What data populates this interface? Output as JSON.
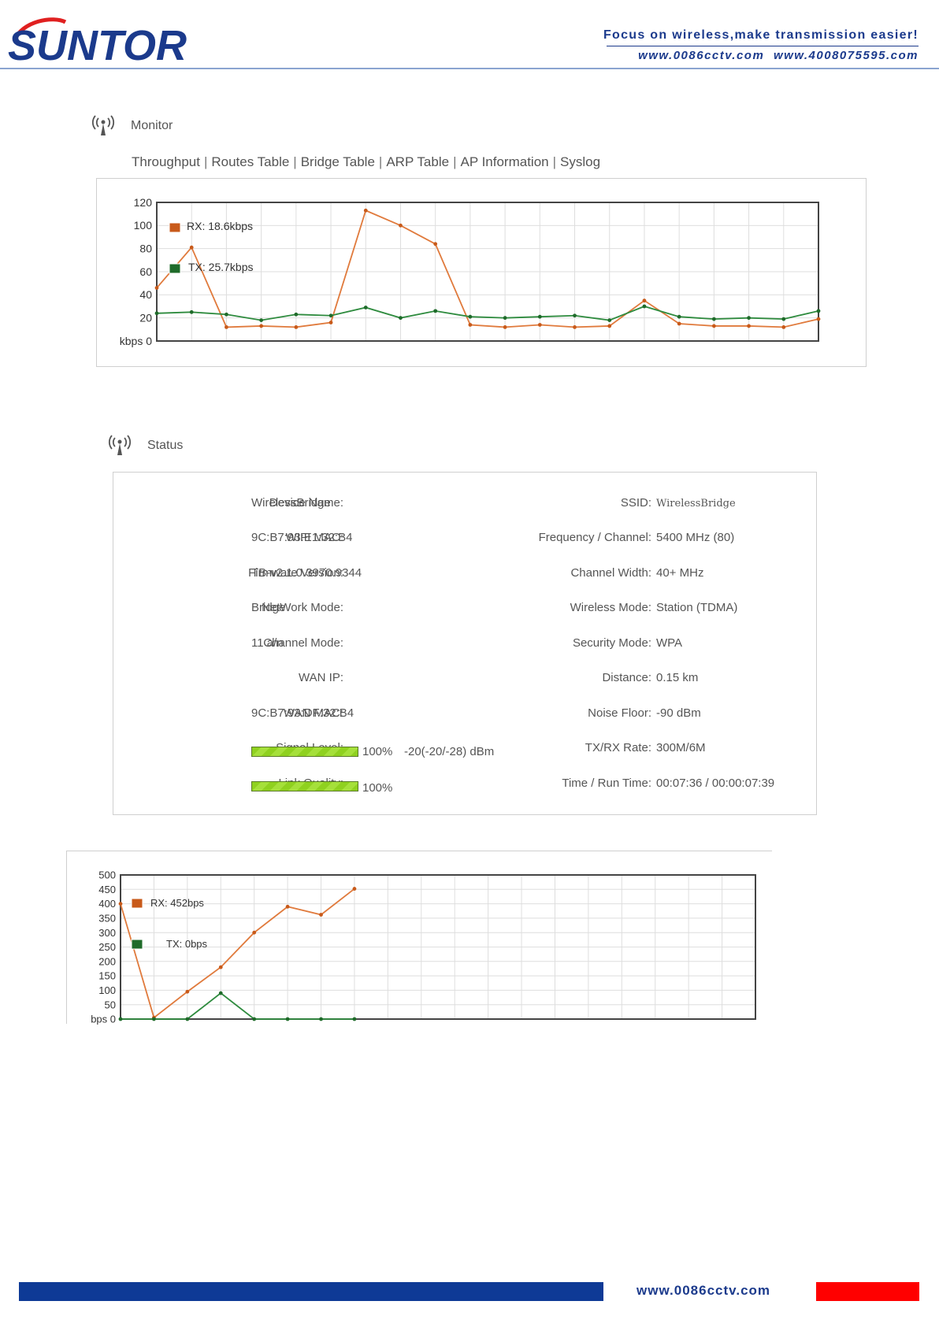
{
  "header": {
    "logo_text": "SUNTOR",
    "tagline": "Focus on wireless,make transmission easier!",
    "urls": "www.0086cctv.com www.4008075595.com"
  },
  "monitor": {
    "title": "Monitor",
    "tabs": [
      "Throughput",
      "Routes Table",
      "Bridge Table",
      "ARP Table",
      "AP Information",
      "Syslog"
    ]
  },
  "status": {
    "title": "Status",
    "left": [
      {
        "label": "Device Name:",
        "value": "WirelessBridge"
      },
      {
        "label": "WIFI MAC:",
        "value": "9C:B7:93:E1:32:B4"
      },
      {
        "label": "Firmware Version:",
        "value": "TB-v2.1.0.3970.9344"
      },
      {
        "label": "NetWork Mode:",
        "value": "Bridge"
      },
      {
        "label": "Channel Mode:",
        "value": "11 a/n"
      },
      {
        "label": "WAN IP:",
        "value": ""
      },
      {
        "label": "WAN MAC:",
        "value": "9C:B7:93:DF:32:B4"
      },
      {
        "label": "Signal Level:",
        "value": ""
      },
      {
        "label": "Link Quality:",
        "value": ""
      }
    ],
    "right": [
      {
        "label": "SSID:",
        "value": "WirelessBridge"
      },
      {
        "label": "Frequency / Channel:",
        "value": "5400 MHz (80)"
      },
      {
        "label": "Channel Width:",
        "value": "40+ MHz"
      },
      {
        "label": "Wireless Mode:",
        "value": "Station (TDMA)"
      },
      {
        "label": "Security Mode:",
        "value": "WPA"
      },
      {
        "label": "Distance:",
        "value": "0.15 km"
      },
      {
        "label": "Noise Floor:",
        "value": "-90 dBm"
      },
      {
        "label": "TX/RX Rate:",
        "value": "300M/6M"
      },
      {
        "label": "Time / Run Time:",
        "value": "00:07:36 / 00:00:07:39"
      }
    ],
    "signal_level": {
      "percent_label": "100%",
      "fraction": 1.0,
      "dbm": "-20(-20/-28) dBm"
    },
    "link_quality": {
      "percent_label": "100%",
      "fraction": 1.0
    }
  },
  "chart_data": [
    {
      "type": "line",
      "unit": "kbps",
      "ylim": [
        0,
        120
      ],
      "yticks": [
        0,
        20,
        40,
        60,
        80,
        100,
        120
      ],
      "ytick_labels": [
        "kbps 0",
        "20",
        "40",
        "60",
        "80",
        "100",
        "120"
      ],
      "xcount": 20,
      "grid": true,
      "legend": "top-left",
      "series": [
        {
          "name": "RX: 18.6kbps",
          "color": "#e07a3c",
          "marker": "#c85a1a",
          "values": [
            46,
            81,
            12,
            13,
            12,
            16,
            113,
            100,
            84,
            14,
            12,
            14,
            12,
            13,
            35,
            15,
            13,
            13,
            12,
            19
          ]
        },
        {
          "name": "TX: 25.7kbps",
          "color": "#2e8b3e",
          "marker": "#1f6b2a",
          "values": [
            24,
            25,
            23,
            18,
            23,
            22,
            29,
            20,
            26,
            21,
            20,
            21,
            22,
            18,
            30,
            21,
            19,
            20,
            19,
            26
          ]
        }
      ]
    },
    {
      "type": "line",
      "unit": "bps",
      "ylim": [
        0,
        500
      ],
      "yticks": [
        0,
        50,
        100,
        150,
        200,
        250,
        300,
        350,
        400,
        450,
        500
      ],
      "ytick_labels": [
        "bps 0",
        "50",
        "100",
        "150",
        "200",
        "250",
        "300",
        "350",
        "400",
        "450",
        "500"
      ],
      "xcount": 20,
      "grid": true,
      "legend": "top-left",
      "series": [
        {
          "name": "RX: 452bps",
          "color": "#e07a3c",
          "marker": "#c85a1a",
          "values": [
            400,
            5,
            95,
            180,
            300,
            390,
            362,
            452
          ]
        },
        {
          "name": "TX: 0bps",
          "color": "#2e8b3e",
          "marker": "#1f6b2a",
          "values": [
            0,
            0,
            0,
            90,
            0,
            0,
            0,
            0
          ]
        }
      ]
    }
  ],
  "footer": {
    "url": "www.0086cctv.com"
  },
  "icons": {
    "section": "wireless-antenna-icon"
  }
}
